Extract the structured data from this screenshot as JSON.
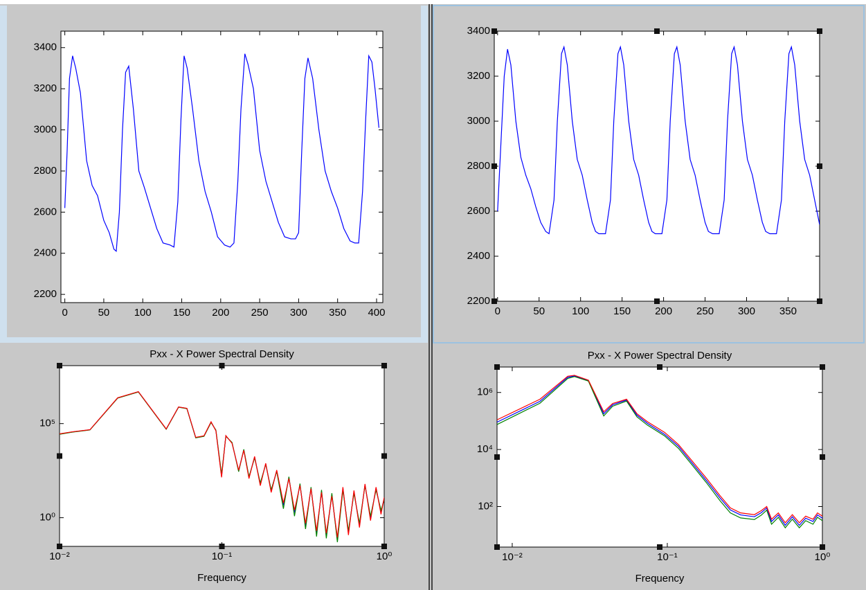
{
  "chart_data": [
    {
      "type": "line",
      "x": [
        0,
        3,
        6,
        10,
        14,
        20,
        28,
        35,
        42,
        50,
        57,
        63,
        66,
        70,
        74,
        78,
        82,
        88,
        95,
        102,
        110,
        118,
        126,
        135,
        140,
        145,
        149,
        153,
        157,
        164,
        172,
        180,
        188,
        196,
        205,
        212,
        217,
        222,
        226,
        231,
        235,
        242,
        250,
        258,
        266,
        274,
        282,
        290,
        296,
        300,
        304,
        308,
        312,
        318,
        326,
        334,
        342,
        350,
        358,
        366,
        372,
        377,
        382,
        386,
        390,
        394,
        398,
        403
      ],
      "series": [
        {
          "color": "#0000ff",
          "values": [
            2620,
            2900,
            3250,
            3360,
            3300,
            3180,
            2850,
            2730,
            2680,
            2560,
            2500,
            2420,
            2410,
            2600,
            3000,
            3280,
            3310,
            3100,
            2800,
            2720,
            2620,
            2520,
            2450,
            2440,
            2430,
            2650,
            3050,
            3360,
            3300,
            3100,
            2850,
            2700,
            2600,
            2480,
            2440,
            2430,
            2450,
            2750,
            3100,
            3370,
            3320,
            3200,
            2900,
            2750,
            2650,
            2550,
            2480,
            2470,
            2470,
            2500,
            2900,
            3250,
            3350,
            3250,
            3000,
            2800,
            2700,
            2620,
            2520,
            2460,
            2450,
            2450,
            2700,
            3050,
            3360,
            3330,
            3200,
            3010
          ]
        }
      ],
      "xlim": [
        -5,
        408
      ],
      "ylim": [
        2160,
        3480
      ],
      "xticks": [
        0,
        50,
        100,
        150,
        200,
        250,
        300,
        350,
        400
      ],
      "yticks": [
        2200,
        2400,
        2600,
        2800,
        3000,
        3200,
        3400
      ]
    },
    {
      "type": "line",
      "x": [
        0,
        4,
        8,
        12,
        16,
        22,
        28,
        34,
        40,
        46,
        52,
        58,
        62,
        68,
        72,
        77,
        80,
        84,
        90,
        96,
        102,
        108,
        114,
        118,
        122,
        130,
        136,
        140,
        145,
        148,
        152,
        158,
        164,
        170,
        176,
        182,
        186,
        190,
        198,
        204,
        208,
        213,
        216,
        220,
        226,
        232,
        238,
        244,
        250,
        254,
        259,
        267,
        273,
        277,
        282,
        285,
        289,
        295,
        301,
        307,
        313,
        319,
        323,
        328,
        336,
        342,
        346,
        351,
        354,
        358,
        364,
        370,
        376,
        382,
        388
      ],
      "series": [
        {
          "color": "#0000ff",
          "values": [
            2600,
            2900,
            3200,
            3320,
            3250,
            3000,
            2840,
            2760,
            2700,
            2620,
            2550,
            2510,
            2500,
            2650,
            3000,
            3300,
            3330,
            3250,
            3000,
            2830,
            2760,
            2650,
            2550,
            2510,
            2500,
            2500,
            2650,
            3000,
            3300,
            3330,
            3250,
            3000,
            2830,
            2760,
            2650,
            2550,
            2510,
            2500,
            2500,
            2650,
            3000,
            3300,
            3330,
            3250,
            3000,
            2830,
            2760,
            2650,
            2550,
            2510,
            2500,
            2500,
            2650,
            3000,
            3300,
            3330,
            3250,
            3000,
            2830,
            2760,
            2650,
            2550,
            2510,
            2500,
            2500,
            2650,
            3000,
            3300,
            3330,
            3250,
            3000,
            2830,
            2760,
            2650,
            2540
          ]
        }
      ],
      "xlim": [
        -4,
        388
      ],
      "ylim": [
        2200,
        3400
      ],
      "xticks": [
        0,
        50,
        100,
        150,
        200,
        250,
        300,
        350
      ],
      "yticks": [
        2200,
        2400,
        2600,
        2800,
        3000,
        3200,
        3400
      ]
    },
    {
      "type": "line",
      "title": "Pxx - X Power Spectral Density",
      "x_label": "Frequency",
      "xscale": "log",
      "yscale": "log",
      "x": [
        0.01,
        0.012,
        0.0154,
        0.0228,
        0.0306,
        0.0454,
        0.0541,
        0.0609,
        0.069,
        0.0776,
        0.0858,
        0.0919,
        0.0996,
        0.1058,
        0.1155,
        0.1269,
        0.1365,
        0.1469,
        0.1591,
        0.1725,
        0.1863,
        0.2013,
        0.2177,
        0.2394,
        0.2588,
        0.2801,
        0.3029,
        0.3276,
        0.3542,
        0.3831,
        0.4111,
        0.44,
        0.476,
        0.5148,
        0.5567,
        0.6021,
        0.6512,
        0.7042,
        0.7616,
        0.8237,
        0.8908,
        0.9557,
        1.0
      ],
      "series": [
        {
          "color": "#0000ff",
          "values": [
            28000,
            36000,
            47000,
            2300000,
            4900000,
            51000,
            760000,
            640000,
            18000,
            22000,
            120000,
            43000,
            160,
            22000,
            9400,
            316,
            4000,
            135,
            1700,
            58,
            740,
            25,
            316,
            4.6,
            135,
            1.9,
            58,
            0.36,
            38,
            0.15,
            25,
            0.1,
            16,
            0.066,
            38,
            0.15,
            25,
            0.36,
            58,
            0.85,
            38,
            1.9,
            11
          ]
        },
        {
          "color": "#008000",
          "values": [
            27000,
            35000,
            46000,
            2250000,
            4800000,
            50000,
            740000,
            620000,
            17500,
            21000,
            115000,
            45000,
            200,
            21000,
            10000,
            280,
            4300,
            150,
            1500,
            70,
            680,
            30,
            290,
            3,
            150,
            1.2,
            65,
            0.25,
            42,
            0.1,
            30,
            0.08,
            20,
            0.05,
            30,
            0.2,
            20,
            0.5,
            50,
            1.2,
            30,
            2.5,
            9
          ]
        },
        {
          "color": "#ff0000",
          "values": [
            28500,
            36500,
            47500,
            2350000,
            5000000,
            52000,
            770000,
            650000,
            18500,
            22500,
            125000,
            41000,
            140,
            23000,
            9000,
            330,
            3800,
            120,
            1800,
            50,
            780,
            22,
            340,
            6,
            120,
            2.5,
            52,
            0.5,
            35,
            0.2,
            22,
            0.15,
            14,
            0.09,
            42,
            0.12,
            28,
            0.3,
            62,
            0.7,
            42,
            1.5,
            12
          ]
        }
      ],
      "xlim": [
        0.01,
        1
      ],
      "ylim": [
        0.03,
        120000000
      ],
      "xticks": [
        {
          "value": 0.01,
          "label": "10⁻²"
        },
        {
          "value": 0.1,
          "label": "10⁻¹"
        },
        {
          "value": 1,
          "label": "10⁰"
        }
      ],
      "yticks": [
        {
          "value": 1,
          "label": "10⁰"
        },
        {
          "value": 100000,
          "label": "10⁵"
        }
      ]
    },
    {
      "type": "line",
      "title": "Pxx - X Power Spectral Density",
      "x_label": "Frequency",
      "xscale": "log",
      "yscale": "log",
      "x": [
        0.00798,
        0.0151,
        0.0228,
        0.0252,
        0.031,
        0.0389,
        0.0444,
        0.0546,
        0.0637,
        0.0743,
        0.096,
        0.118,
        0.145,
        0.1782,
        0.2189,
        0.2549,
        0.2967,
        0.3644,
        0.4035,
        0.4376,
        0.47,
        0.52,
        0.576,
        0.64,
        0.71,
        0.78,
        0.87,
        0.93,
        1.0
      ],
      "series": [
        {
          "color": "#0000ff",
          "values": [
            91000,
            490000,
            3400000,
            3800000,
            2600000,
            180000,
            370000,
            540000,
            160000,
            83000,
            34000,
            13000,
            3300,
            830,
            200,
            76,
            51,
            44,
            61,
            89,
            30,
            51,
            22,
            44,
            22,
            39,
            30,
            51,
            39
          ]
        },
        {
          "color": "#008000",
          "values": [
            75000,
            420000,
            3100000,
            3600000,
            2500000,
            150000,
            330000,
            500000,
            140000,
            72000,
            30000,
            11000,
            2800,
            700,
            160,
            60,
            40,
            35,
            50,
            75,
            24,
            42,
            18,
            36,
            18,
            32,
            24,
            42,
            32
          ]
        },
        {
          "color": "#ff0000",
          "values": [
            110000,
            580000,
            3700000,
            4000000,
            2700000,
            210000,
            410000,
            580000,
            180000,
            95000,
            40000,
            15000,
            3900,
            1000,
            240,
            90,
            60,
            52,
            72,
            100,
            36,
            60,
            27,
            52,
            27,
            46,
            36,
            60,
            46
          ]
        }
      ],
      "xlim": [
        0.00798,
        1
      ],
      "ylim": [
        3.8,
        7800000
      ],
      "xticks": [
        {
          "value": 0.01,
          "label": "10⁻²"
        },
        {
          "value": 0.1,
          "label": "10⁻¹"
        },
        {
          "value": 1,
          "label": "10⁰"
        }
      ],
      "yticks": [
        {
          "value": 100,
          "label": "10²"
        },
        {
          "value": 10000,
          "label": "10⁴"
        },
        {
          "value": 1000000,
          "label": "10⁶"
        }
      ]
    }
  ]
}
